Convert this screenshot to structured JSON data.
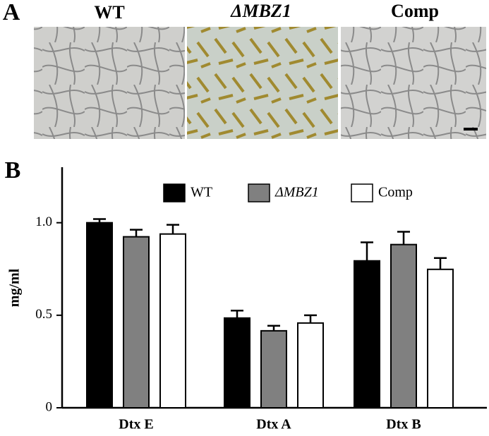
{
  "figure": {
    "panel_labels": [
      "A",
      "B"
    ],
    "image_titles": [
      "WT",
      "ΔMBZ1",
      "Comp"
    ]
  },
  "chart_data": {
    "type": "bar",
    "ylabel": "mg/ml",
    "categories": [
      "Dtx E",
      "Dtx A",
      "Dtx B"
    ],
    "series": [
      {
        "name": "WT",
        "color": "#000000",
        "values": [
          1.0,
          0.485,
          0.794
        ],
        "errors": [
          0.02,
          0.04,
          0.1
        ]
      },
      {
        "name": "ΔMBZ1",
        "color": "#808080",
        "values": [
          0.924,
          0.416,
          0.882
        ],
        "errors": [
          0.038,
          0.027,
          0.069
        ]
      },
      {
        "name": "Comp",
        "color": "#ffffff",
        "values": [
          0.939,
          0.458,
          0.748
        ],
        "errors": [
          0.05,
          0.042,
          0.061
        ]
      }
    ],
    "ylim": [
      0,
      1.3
    ],
    "yticks": [
      0,
      0.5,
      {
        "value": 1,
        "label": "1.0"
      }
    ],
    "legend": "top"
  }
}
